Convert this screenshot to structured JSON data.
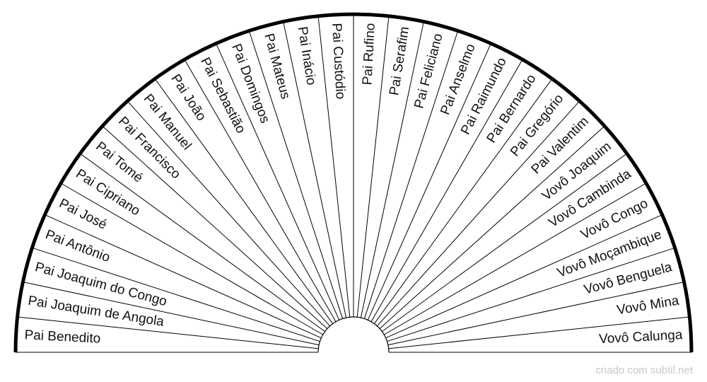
{
  "diagram": {
    "labels": [
      "Pai Benedito",
      "Pai Joaquim de Angola",
      "Pai Joaquim do Congo",
      "Pai Antônio",
      "Pai José",
      "Pai Cipriano",
      "Pai Tomé",
      "Pai Francisco",
      "Pai Manuel",
      "Pai João",
      "Pai Sebastião",
      "Pai Domingos",
      "Pai Mateus",
      "Pai Inácio",
      "Pai Custódio",
      "Pai Rufino",
      "Pai Serafim",
      "Pai Feliciano",
      "Pai Anselmo",
      "Pai Raimundo",
      "Pai Bernardo",
      "Pai Gregório",
      "Pai Valentim",
      "Vovô Joaquim",
      "Vovô Cambinda",
      "Vovô Congo",
      "Vovô Moçambique",
      "Vovô Benguela",
      "Vovô Mina",
      "Vovô Calunga"
    ],
    "line_color": "#000000",
    "text_color": "#111111"
  },
  "footer": {
    "credit": "criado com subtil.net",
    "credit_color": "#c8c8c8"
  }
}
